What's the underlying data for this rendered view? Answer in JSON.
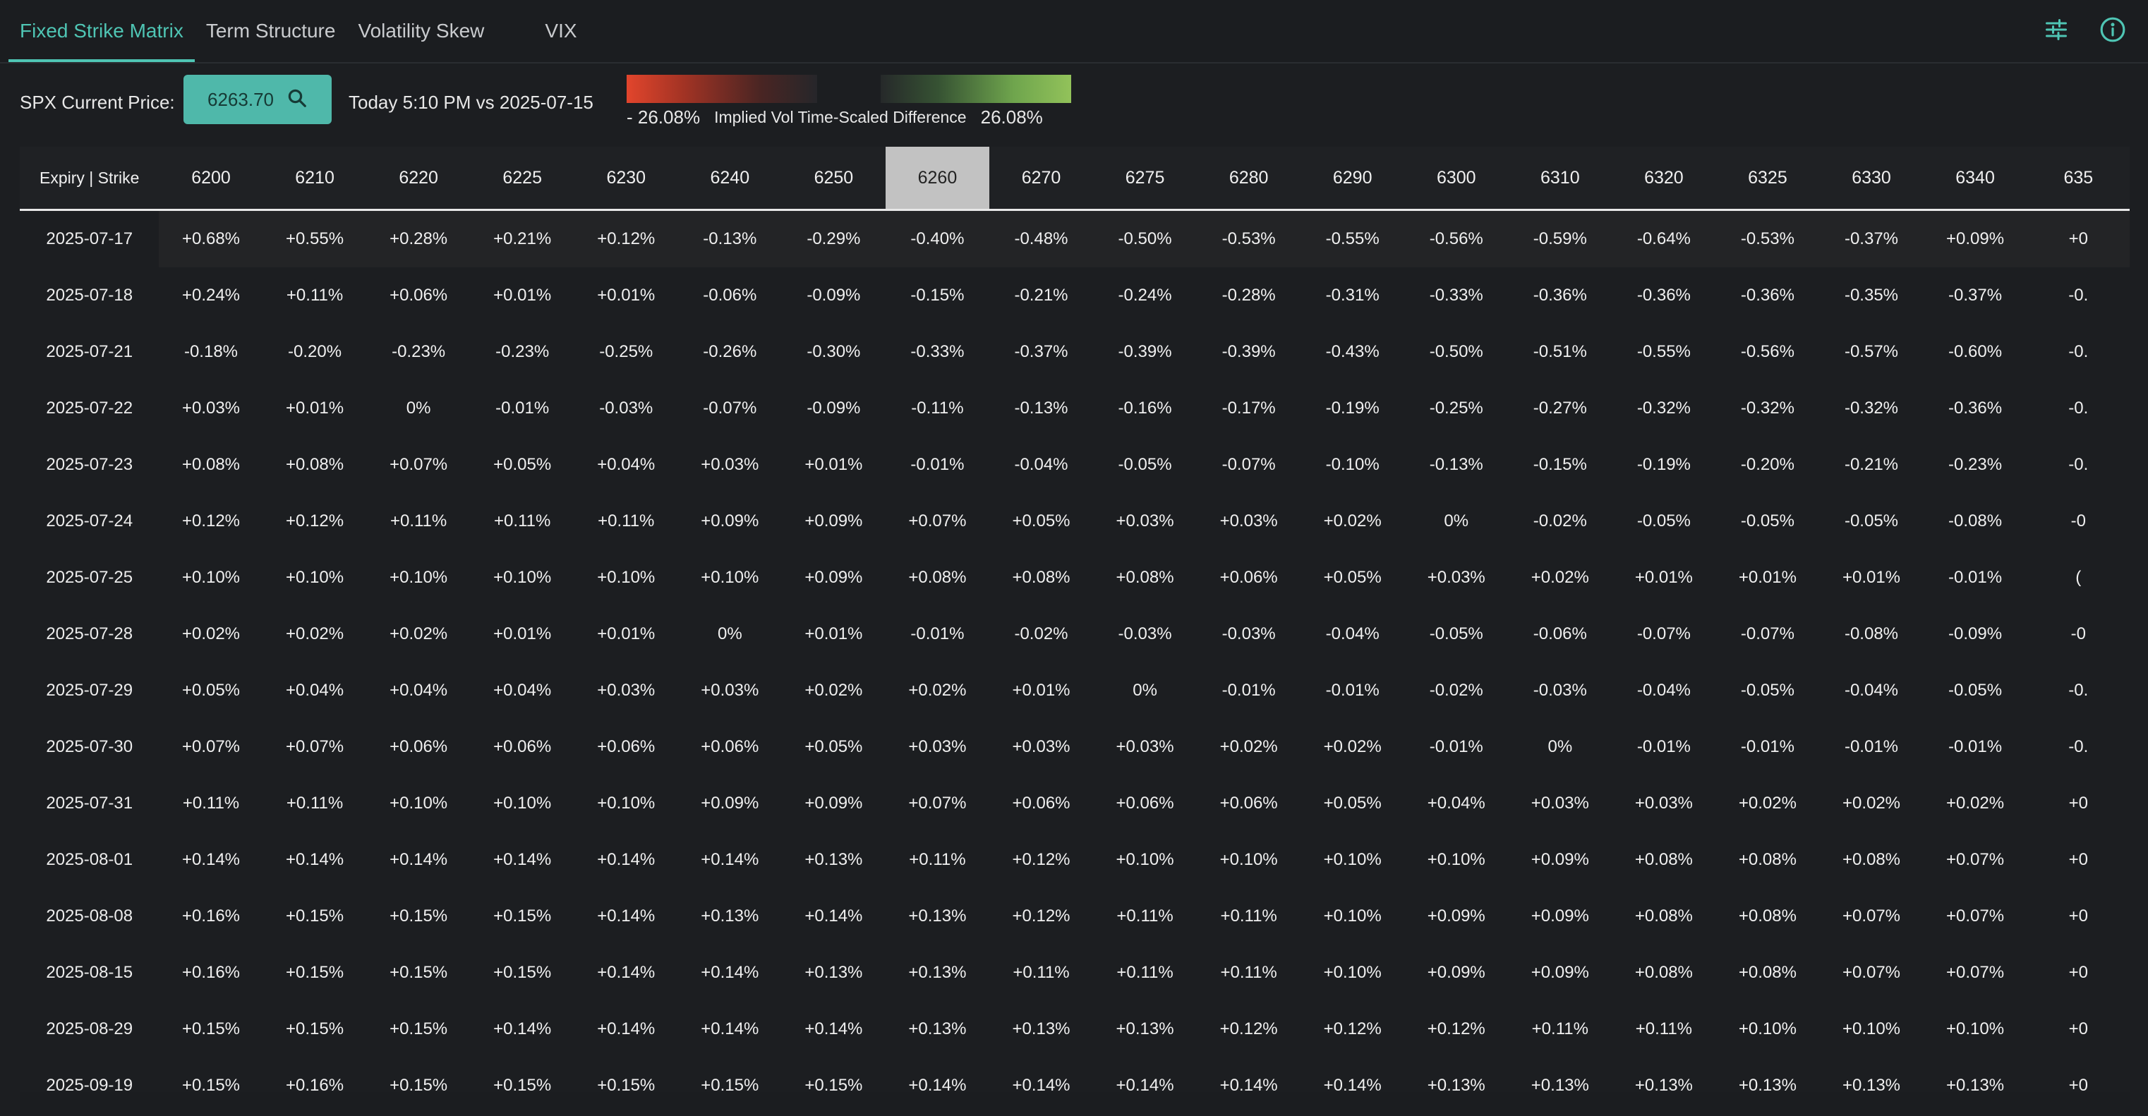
{
  "tabs": [
    {
      "label": "Fixed Strike Matrix",
      "active": true
    },
    {
      "label": "Term Structure",
      "active": false
    },
    {
      "label": "Volatility Skew",
      "active": false
    },
    {
      "label": "VIX",
      "active": false
    }
  ],
  "icons": {
    "settings": "sliders-icon",
    "info": "info-icon"
  },
  "controls": {
    "price_label": "SPX Current Price:",
    "price_value": "6263.70",
    "compare_text": "Today 5:10 PM vs 2025-07-15"
  },
  "legend": {
    "low": "- 26.08%",
    "title": "Implied Vol Time-Scaled Difference",
    "high": "26.08%",
    "neg_color": "#e2452c",
    "pos_color": "#92c25a"
  },
  "matrix": {
    "corner": "Expiry | Strike",
    "highlight_strike": "6260",
    "strikes": [
      "6200",
      "6210",
      "6220",
      "6225",
      "6230",
      "6240",
      "6250",
      "6260",
      "6270",
      "6275",
      "6280",
      "6290",
      "6300",
      "6310",
      "6320",
      "6325",
      "6330",
      "6340",
      "635"
    ],
    "rows": [
      {
        "expiry": "2025-07-17",
        "values": [
          "+0.68%",
          "+0.55%",
          "+0.28%",
          "+0.21%",
          "+0.12%",
          "-0.13%",
          "-0.29%",
          "-0.40%",
          "-0.48%",
          "-0.50%",
          "-0.53%",
          "-0.55%",
          "-0.56%",
          "-0.59%",
          "-0.64%",
          "-0.53%",
          "-0.37%",
          "+0.09%",
          "+0"
        ]
      },
      {
        "expiry": "2025-07-18",
        "values": [
          "+0.24%",
          "+0.11%",
          "+0.06%",
          "+0.01%",
          "+0.01%",
          "-0.06%",
          "-0.09%",
          "-0.15%",
          "-0.21%",
          "-0.24%",
          "-0.28%",
          "-0.31%",
          "-0.33%",
          "-0.36%",
          "-0.36%",
          "-0.36%",
          "-0.35%",
          "-0.37%",
          "-0."
        ]
      },
      {
        "expiry": "2025-07-21",
        "values": [
          "-0.18%",
          "-0.20%",
          "-0.23%",
          "-0.23%",
          "-0.25%",
          "-0.26%",
          "-0.30%",
          "-0.33%",
          "-0.37%",
          "-0.39%",
          "-0.39%",
          "-0.43%",
          "-0.50%",
          "-0.51%",
          "-0.55%",
          "-0.56%",
          "-0.57%",
          "-0.60%",
          "-0."
        ]
      },
      {
        "expiry": "2025-07-22",
        "values": [
          "+0.03%",
          "+0.01%",
          "0%",
          "-0.01%",
          "-0.03%",
          "-0.07%",
          "-0.09%",
          "-0.11%",
          "-0.13%",
          "-0.16%",
          "-0.17%",
          "-0.19%",
          "-0.25%",
          "-0.27%",
          "-0.32%",
          "-0.32%",
          "-0.32%",
          "-0.36%",
          "-0."
        ]
      },
      {
        "expiry": "2025-07-23",
        "values": [
          "+0.08%",
          "+0.08%",
          "+0.07%",
          "+0.05%",
          "+0.04%",
          "+0.03%",
          "+0.01%",
          "-0.01%",
          "-0.04%",
          "-0.05%",
          "-0.07%",
          "-0.10%",
          "-0.13%",
          "-0.15%",
          "-0.19%",
          "-0.20%",
          "-0.21%",
          "-0.23%",
          "-0."
        ]
      },
      {
        "expiry": "2025-07-24",
        "values": [
          "+0.12%",
          "+0.12%",
          "+0.11%",
          "+0.11%",
          "+0.11%",
          "+0.09%",
          "+0.09%",
          "+0.07%",
          "+0.05%",
          "+0.03%",
          "+0.03%",
          "+0.02%",
          "0%",
          "-0.02%",
          "-0.05%",
          "-0.05%",
          "-0.05%",
          "-0.08%",
          "-0"
        ]
      },
      {
        "expiry": "2025-07-25",
        "values": [
          "+0.10%",
          "+0.10%",
          "+0.10%",
          "+0.10%",
          "+0.10%",
          "+0.10%",
          "+0.09%",
          "+0.08%",
          "+0.08%",
          "+0.08%",
          "+0.06%",
          "+0.05%",
          "+0.03%",
          "+0.02%",
          "+0.01%",
          "+0.01%",
          "+0.01%",
          "-0.01%",
          "("
        ]
      },
      {
        "expiry": "2025-07-28",
        "values": [
          "+0.02%",
          "+0.02%",
          "+0.02%",
          "+0.01%",
          "+0.01%",
          "0%",
          "+0.01%",
          "-0.01%",
          "-0.02%",
          "-0.03%",
          "-0.03%",
          "-0.04%",
          "-0.05%",
          "-0.06%",
          "-0.07%",
          "-0.07%",
          "-0.08%",
          "-0.09%",
          "-0"
        ]
      },
      {
        "expiry": "2025-07-29",
        "values": [
          "+0.05%",
          "+0.04%",
          "+0.04%",
          "+0.04%",
          "+0.03%",
          "+0.03%",
          "+0.02%",
          "+0.02%",
          "+0.01%",
          "0%",
          "-0.01%",
          "-0.01%",
          "-0.02%",
          "-0.03%",
          "-0.04%",
          "-0.05%",
          "-0.04%",
          "-0.05%",
          "-0."
        ]
      },
      {
        "expiry": "2025-07-30",
        "values": [
          "+0.07%",
          "+0.07%",
          "+0.06%",
          "+0.06%",
          "+0.06%",
          "+0.06%",
          "+0.05%",
          "+0.03%",
          "+0.03%",
          "+0.03%",
          "+0.02%",
          "+0.02%",
          "-0.01%",
          "0%",
          "-0.01%",
          "-0.01%",
          "-0.01%",
          "-0.01%",
          "-0."
        ]
      },
      {
        "expiry": "2025-07-31",
        "values": [
          "+0.11%",
          "+0.11%",
          "+0.10%",
          "+0.10%",
          "+0.10%",
          "+0.09%",
          "+0.09%",
          "+0.07%",
          "+0.06%",
          "+0.06%",
          "+0.06%",
          "+0.05%",
          "+0.04%",
          "+0.03%",
          "+0.03%",
          "+0.02%",
          "+0.02%",
          "+0.02%",
          "+0"
        ]
      },
      {
        "expiry": "2025-08-01",
        "values": [
          "+0.14%",
          "+0.14%",
          "+0.14%",
          "+0.14%",
          "+0.14%",
          "+0.14%",
          "+0.13%",
          "+0.11%",
          "+0.12%",
          "+0.10%",
          "+0.10%",
          "+0.10%",
          "+0.10%",
          "+0.09%",
          "+0.08%",
          "+0.08%",
          "+0.08%",
          "+0.07%",
          "+0"
        ]
      },
      {
        "expiry": "2025-08-08",
        "values": [
          "+0.16%",
          "+0.15%",
          "+0.15%",
          "+0.15%",
          "+0.14%",
          "+0.13%",
          "+0.14%",
          "+0.13%",
          "+0.12%",
          "+0.11%",
          "+0.11%",
          "+0.10%",
          "+0.09%",
          "+0.09%",
          "+0.08%",
          "+0.08%",
          "+0.07%",
          "+0.07%",
          "+0"
        ]
      },
      {
        "expiry": "2025-08-15",
        "values": [
          "+0.16%",
          "+0.15%",
          "+0.15%",
          "+0.15%",
          "+0.14%",
          "+0.14%",
          "+0.13%",
          "+0.13%",
          "+0.11%",
          "+0.11%",
          "+0.11%",
          "+0.10%",
          "+0.09%",
          "+0.09%",
          "+0.08%",
          "+0.08%",
          "+0.07%",
          "+0.07%",
          "+0"
        ]
      },
      {
        "expiry": "2025-08-29",
        "values": [
          "+0.15%",
          "+0.15%",
          "+0.15%",
          "+0.14%",
          "+0.14%",
          "+0.14%",
          "+0.14%",
          "+0.13%",
          "+0.13%",
          "+0.13%",
          "+0.12%",
          "+0.12%",
          "+0.12%",
          "+0.11%",
          "+0.11%",
          "+0.10%",
          "+0.10%",
          "+0.10%",
          "+0"
        ]
      },
      {
        "expiry": "2025-09-19",
        "values": [
          "+0.15%",
          "+0.16%",
          "+0.15%",
          "+0.15%",
          "+0.15%",
          "+0.15%",
          "+0.15%",
          "+0.14%",
          "+0.14%",
          "+0.14%",
          "+0.14%",
          "+0.14%",
          "+0.13%",
          "+0.13%",
          "+0.13%",
          "+0.13%",
          "+0.13%",
          "+0.13%",
          "+0"
        ]
      }
    ]
  }
}
